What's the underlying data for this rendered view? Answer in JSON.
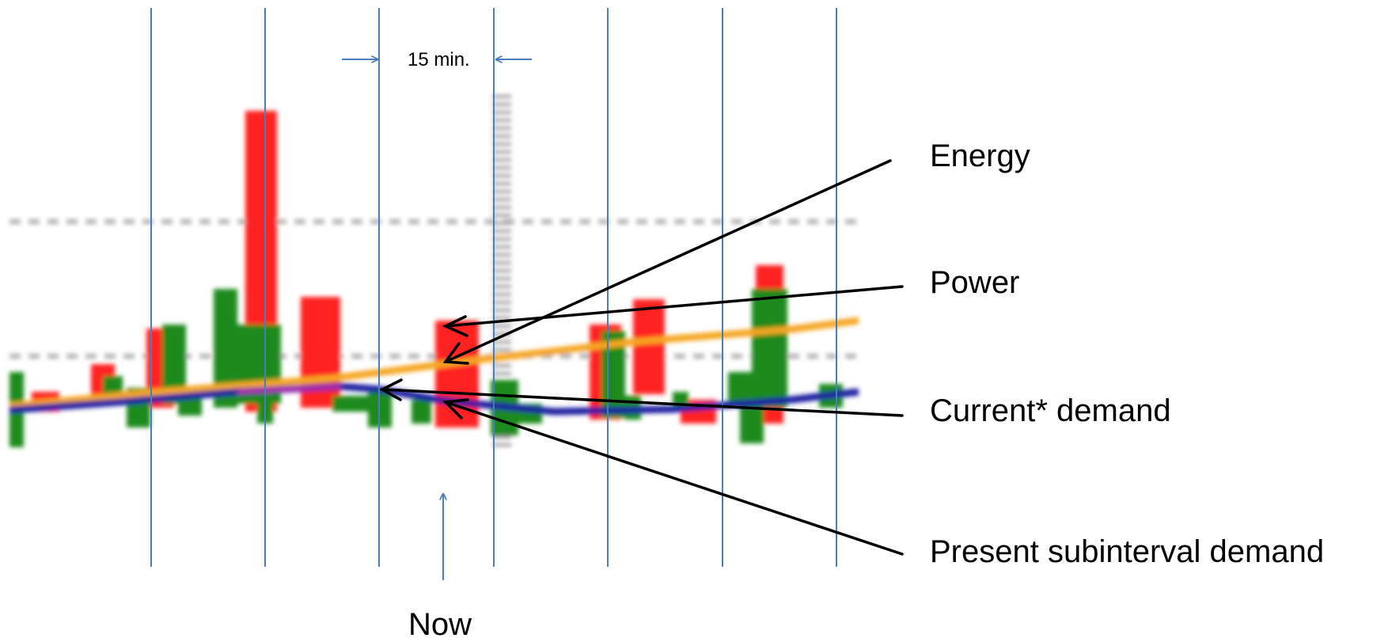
{
  "labels": {
    "interval": "15 min.",
    "now": "Now",
    "energy": "Energy",
    "power": "Power",
    "current_demand": "Current* demand",
    "present_subinterval_demand": "Present subinterval demand"
  },
  "colors": {
    "interval_line": "#4a7ebb",
    "power_bar": "#ff2020",
    "energy_bar": "#1f8a1f",
    "current_demand_line": "#1a1aa0",
    "trend_line": "#f5a623",
    "annotation_arrow": "#000000",
    "gridline": "#b0b0b0"
  }
}
